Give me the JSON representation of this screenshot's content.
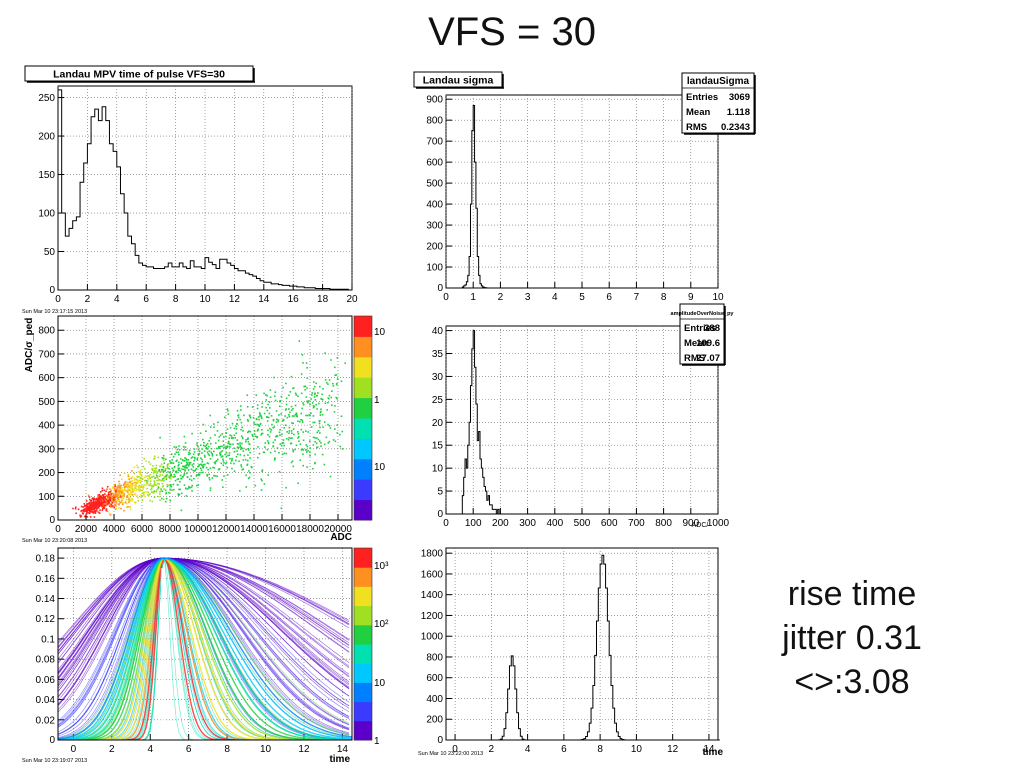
{
  "slide": {
    "title": "VFS = 30",
    "side_note": [
      "rise time",
      "jitter 0.31",
      "<>:3.08"
    ]
  },
  "colors": {
    "frame": "#000000",
    "grid": "#666666",
    "hist_line": "#000000",
    "palette": [
      "#5a00c8",
      "#3b3bff",
      "#0080ff",
      "#00c8ff",
      "#00e0b0",
      "#20d040",
      "#a0e020",
      "#f0e020",
      "#ff9020",
      "#ff2020"
    ]
  },
  "chart_data": [
    {
      "id": "mpv",
      "type": "bar",
      "title": "Landau MPV time of pulse VFS=30",
      "date": "Sun Mar 10 23:17:15 2013",
      "xlabel": "",
      "ylabel": "",
      "xlim": [
        0,
        20
      ],
      "ylim": [
        0,
        265
      ],
      "grid": true,
      "x_ticks": [
        0,
        2,
        4,
        6,
        8,
        10,
        12,
        14,
        16,
        18,
        20
      ],
      "y_ticks": [
        50,
        100,
        150,
        200,
        250
      ],
      "bin_start": 0,
      "bin_width": 0.25,
      "values": [
        260,
        100,
        70,
        80,
        90,
        95,
        140,
        165,
        190,
        225,
        235,
        220,
        238,
        220,
        190,
        180,
        160,
        125,
        100,
        70,
        60,
        45,
        35,
        32,
        30,
        30,
        28,
        28,
        28,
        30,
        35,
        30,
        30,
        35,
        30,
        28,
        38,
        30,
        30,
        28,
        42,
        36,
        33,
        28,
        40,
        40,
        35,
        32,
        28,
        25,
        25,
        22,
        20,
        18,
        15,
        12,
        10,
        10,
        8,
        8,
        7,
        6,
        6,
        5,
        5,
        4,
        4,
        3,
        3,
        3,
        2,
        2,
        2,
        2,
        1,
        1,
        1,
        1,
        1,
        0
      ]
    },
    {
      "id": "sigma",
      "type": "bar",
      "title": "Landau sigma",
      "xlabel": "",
      "ylabel": "",
      "xlim": [
        0,
        10
      ],
      "ylim": [
        0,
        920
      ],
      "grid": true,
      "x_ticks": [
        0,
        1,
        2,
        3,
        4,
        5,
        6,
        7,
        8,
        9,
        10
      ],
      "y_ticks": [
        100,
        200,
        300,
        400,
        500,
        600,
        700,
        800,
        900
      ],
      "bin_start": 0,
      "bin_width": 0.05,
      "values": [
        0,
        0,
        0,
        0,
        0,
        0,
        0,
        0,
        0,
        0,
        0,
        0,
        5,
        10,
        15,
        30,
        60,
        150,
        400,
        750,
        870,
        600,
        380,
        150,
        60,
        20,
        10,
        5,
        2,
        1,
        0,
        0,
        0,
        0,
        0,
        0,
        0,
        0,
        0,
        0
      ],
      "stats": {
        "name": "landauSigma",
        "rows": [
          [
            "Entries",
            "3069"
          ],
          [
            "Mean",
            "1.118"
          ],
          [
            "RMS",
            "0.2343"
          ]
        ]
      }
    },
    {
      "id": "adc",
      "type": "heatmap",
      "title": "",
      "date": "Sun Mar 10 23:20:08 2013",
      "xlabel": "ADC",
      "ylabel": "ADC/σ_ped",
      "xlim": [
        0,
        21000
      ],
      "ylim": [
        0,
        860
      ],
      "grid": true,
      "x_ticks": [
        0,
        2000,
        4000,
        6000,
        8000,
        10000,
        12000,
        14000,
        16000,
        18000,
        20000
      ],
      "y_ticks": [
        100,
        200,
        300,
        400,
        500,
        600,
        700,
        800
      ],
      "colorbar_labels": [
        "10",
        "1",
        "10"
      ],
      "description_points": "diagonal band from (2500,70) dense/red to (19000,500) sparse/green"
    },
    {
      "id": "snr",
      "type": "bar",
      "title": "",
      "xlabel": "ADC/",
      "ylabel": "",
      "xlim": [
        0,
        1000
      ],
      "ylim": [
        0,
        41
      ],
      "grid": true,
      "x_ticks": [
        0,
        100,
        200,
        300,
        400,
        500,
        600,
        700,
        800,
        900,
        1000
      ],
      "y_ticks": [
        5,
        10,
        15,
        20,
        25,
        30,
        35,
        40
      ],
      "bin_start": 60,
      "bin_width": 5,
      "values": [
        4,
        8,
        12,
        10,
        15,
        20,
        28,
        36,
        40,
        32,
        24,
        16,
        18,
        12,
        10,
        8,
        6,
        5,
        3,
        4,
        2,
        2,
        1,
        1,
        1,
        0,
        1,
        0
      ],
      "stats": {
        "name": "amplitudeOverNoise_py",
        "rows": [
          [
            "Entries",
            "388"
          ],
          [
            "Mean",
            "109.6"
          ],
          [
            "RMS",
            "27.07"
          ]
        ]
      }
    },
    {
      "id": "pulses",
      "type": "heatmap",
      "title": "",
      "date": "Sun Mar 10 23:19:07 2013",
      "xlabel": "time",
      "ylabel": "",
      "xlim": [
        -0.8,
        14.5
      ],
      "ylim": [
        0,
        0.19
      ],
      "grid": true,
      "x_ticks": [
        0,
        2,
        4,
        6,
        8,
        10,
        12,
        14
      ],
      "y_ticks": [
        0.02,
        0.04,
        0.06,
        0.08,
        0.1,
        0.12,
        0.14,
        0.16,
        0.18
      ],
      "colorbar_labels": [
        "10³",
        "10²",
        "10",
        "1"
      ],
      "peak_time": 4.7,
      "peak_value": 0.18
    },
    {
      "id": "time",
      "type": "bar",
      "title": "",
      "date": "Sun Mar 10 23:22:00 2013",
      "xlabel": "time",
      "ylabel": "",
      "xlim": [
        -0.5,
        14.5
      ],
      "ylim": [
        0,
        1850
      ],
      "grid": true,
      "x_ticks": [
        0,
        2,
        4,
        6,
        8,
        10,
        12,
        14
      ],
      "y_ticks": [
        200,
        400,
        600,
        800,
        1000,
        1200,
        1400,
        1600,
        1800
      ],
      "peaks": [
        {
          "center": 3.1,
          "height": 810,
          "sigma": 0.2
        },
        {
          "center": 8.1,
          "height": 1780,
          "sigma": 0.32
        }
      ]
    }
  ]
}
